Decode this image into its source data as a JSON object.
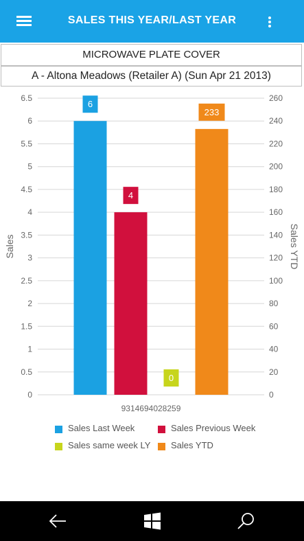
{
  "appbar": {
    "title": "SALES THIS YEAR/LAST YEAR"
  },
  "product": {
    "name": "MICROWAVE PLATE COVER"
  },
  "store": {
    "label": "A - Altona Meadows (Retailer A) (Sun Apr 21 2013)"
  },
  "chart_data": {
    "type": "bar",
    "categories": [
      "9314694028259"
    ],
    "series": [
      {
        "name": "Sales Last Week",
        "values": [
          6
        ],
        "axis": "left",
        "color": "#1ba1e2"
      },
      {
        "name": "Sales Previous Week",
        "values": [
          4
        ],
        "axis": "left",
        "color": "#d1103d"
      },
      {
        "name": "Sales same week LY",
        "values": [
          0
        ],
        "axis": "left",
        "color": "#c7d51c"
      },
      {
        "name": "Sales YTD",
        "values": [
          233
        ],
        "axis": "right",
        "color": "#f0891a"
      }
    ],
    "ylabel": "Sales",
    "y2label": "Sales YTD",
    "ylim": [
      0,
      6.5
    ],
    "y2lim": [
      0,
      260
    ],
    "yticks": [
      "0",
      "0.5",
      "1",
      "1.5",
      "2",
      "2.5",
      "3",
      "3.5",
      "4",
      "4.5",
      "5",
      "5.5",
      "6",
      "6.5"
    ],
    "y2ticks": [
      "0",
      "20",
      "40",
      "60",
      "80",
      "100",
      "120",
      "140",
      "160",
      "180",
      "200",
      "220",
      "240",
      "260"
    ],
    "grid": true,
    "legend_position": "bottom"
  },
  "legend": [
    {
      "label": "Sales Last Week",
      "color": "#1ba1e2"
    },
    {
      "label": "Sales Previous Week",
      "color": "#d1103d"
    },
    {
      "label": "Sales same week LY",
      "color": "#c7d51c"
    },
    {
      "label": "Sales YTD",
      "color": "#f0891a"
    }
  ],
  "navbar": {
    "back_icon": "back-arrow-icon",
    "home_icon": "windows-logo-icon",
    "search_icon": "search-icon"
  }
}
